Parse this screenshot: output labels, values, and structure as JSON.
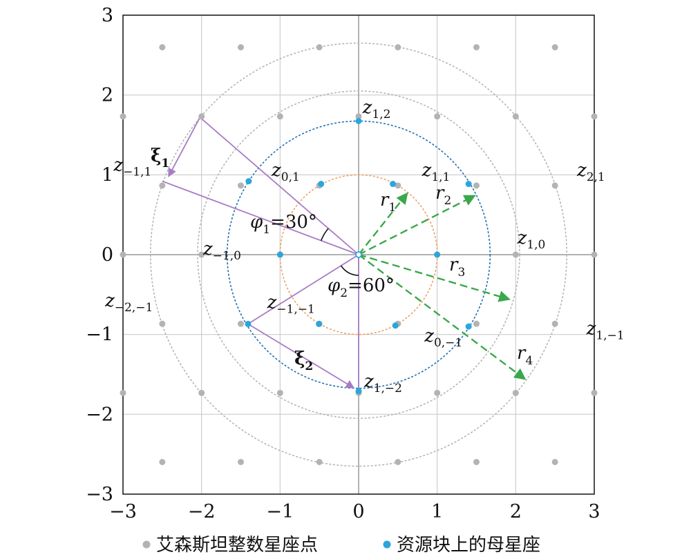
{
  "chart_data": {
    "type": "scatter",
    "title": "",
    "xlabel": "",
    "ylabel": "",
    "xlim": [
      -3,
      3
    ],
    "ylim": [
      -3,
      3
    ],
    "xticks": [
      "-3",
      "-2",
      "-1",
      "0",
      "1",
      "2",
      "3"
    ],
    "yticks": [
      "-3",
      "-2",
      "-1",
      "0",
      "1",
      "2",
      "3"
    ],
    "grid": true,
    "legend_position": "bottom",
    "colors": {
      "grid": "#cccccc",
      "axis": "#999999",
      "eisenstein": "#b3b3b3",
      "constellation": "#2aa6dd",
      "circle_inner": "#f0a060",
      "circle_mid": "#1f6fb4",
      "circle_outer": "#b5b5b5",
      "purple": "#a87cc4",
      "green": "#3aa84a"
    },
    "series": [
      {
        "name": "艾森斯坦整数星座点",
        "points": [
          [
            0,
            0
          ],
          [
            1,
            0
          ],
          [
            0.5,
            0.866
          ],
          [
            -0.5,
            0.866
          ],
          [
            -1,
            0
          ],
          [
            -0.5,
            -0.866
          ],
          [
            0.5,
            -0.866
          ],
          [
            1.5,
            0.866
          ],
          [
            0,
            1.732
          ],
          [
            -1.5,
            0.866
          ],
          [
            -1.5,
            -0.866
          ],
          [
            0,
            -1.732
          ],
          [
            1.5,
            -0.866
          ],
          [
            2,
            0
          ],
          [
            1,
            1.732
          ],
          [
            -1,
            1.732
          ],
          [
            -2,
            0
          ],
          [
            -1,
            -1.732
          ],
          [
            1,
            -1.732
          ],
          [
            2.5,
            0.866
          ],
          [
            2,
            1.732
          ],
          [
            0.5,
            2.598
          ],
          [
            -0.5,
            2.598
          ],
          [
            -2,
            1.732
          ],
          [
            -2.5,
            0.866
          ],
          [
            -2.5,
            -0.866
          ],
          [
            -2,
            -1.732
          ],
          [
            -0.5,
            -2.598
          ],
          [
            0.5,
            -2.598
          ],
          [
            2,
            -1.732
          ],
          [
            2.5,
            -0.866
          ],
          [
            3,
            0
          ],
          [
            -3,
            0
          ],
          [
            3,
            1.732
          ],
          [
            -3,
            1.732
          ],
          [
            3,
            -1.732
          ],
          [
            -3,
            -1.732
          ],
          [
            1.5,
            2.598
          ],
          [
            -1.5,
            2.598
          ],
          [
            2.5,
            2.598
          ],
          [
            -2.5,
            2.598
          ],
          [
            1.5,
            -2.598
          ],
          [
            -1.5,
            -2.598
          ],
          [
            2.5,
            -2.598
          ],
          [
            -2.5,
            -2.598
          ]
        ]
      },
      {
        "name": "资源块上的母星座",
        "points": [
          {
            "x": 0,
            "y": 1.674,
            "label": "z",
            "sub": "1,2",
            "lx": 0.05,
            "ly": 0.1
          },
          {
            "x": 0.436,
            "y": 0.886,
            "label": "z",
            "sub": "1,1",
            "lx": 0.37,
            "ly": 0.1
          },
          {
            "x": -0.478,
            "y": 0.886,
            "label": "z",
            "sub": "0,1",
            "lx": -0.63,
            "ly": 0.1
          },
          {
            "x": 1.4,
            "y": 0.886,
            "label": "z",
            "sub": "2,1",
            "lx": 1.38,
            "ly": 0.1
          },
          {
            "x": -1.4,
            "y": 0.92,
            "label": "z",
            "sub": "−1,1",
            "lx": -1.72,
            "ly": 0.13
          },
          {
            "x": 1.0,
            "y": 0.0,
            "label": "z",
            "sub": "1,0",
            "lx": 1.02,
            "ly": 0.14
          },
          {
            "x": -1.0,
            "y": 0.0,
            "label": "z",
            "sub": "−1,0",
            "lx": -0.98,
            "ly": 0.0
          },
          {
            "x": -0.505,
            "y": -0.868,
            "label": "z",
            "sub": "−1,−1",
            "lx": -0.66,
            "ly": 0.2
          },
          {
            "x": 0.468,
            "y": -0.888,
            "label": "z",
            "sub": "0,−1",
            "lx": 0.37,
            "ly": -0.2
          },
          {
            "x": 1.4,
            "y": -0.9,
            "label": "z",
            "sub": "1,−1",
            "lx": 1.5,
            "ly": -0.1
          },
          {
            "x": -1.408,
            "y": -0.868,
            "label": "z",
            "sub": "−2,−1",
            "lx": -1.82,
            "ly": 0.22
          },
          {
            "x": 0,
            "y": -1.71,
            "label": "z",
            "sub": "1,−2",
            "lx": 0.07,
            "ly": 0.05
          }
        ]
      }
    ],
    "circles": [
      {
        "r": 1.0,
        "color": "#f0a060"
      },
      {
        "r": 1.674,
        "color": "#1f6fb4"
      },
      {
        "r": 2.05,
        "color": "#b5b5b5"
      },
      {
        "r": 2.65,
        "color": "#b5b5b5"
      }
    ],
    "annotations": {
      "xi1": {
        "text": "ξ",
        "sub": "1"
      },
      "xi2": {
        "text": "ξ",
        "sub": "2"
      },
      "phi1": {
        "text": "φ",
        "sub": "1",
        "value": "=30°"
      },
      "phi2": {
        "text": "φ",
        "sub": "2",
        "value": "=60°"
      },
      "r_labels": [
        {
          "text": "r",
          "sub": "1"
        },
        {
          "text": "r",
          "sub": "2"
        },
        {
          "text": "r",
          "sub": "3"
        },
        {
          "text": "r",
          "sub": "4"
        }
      ]
    },
    "vectors": {
      "purple_lines": [
        [
          [
            0,
            0
          ],
          [
            -2.5,
            0.92
          ]
        ],
        [
          [
            0,
            0
          ],
          [
            -2.02,
            1.72
          ]
        ],
        [
          [
            0,
            0
          ],
          [
            -1.408,
            -0.868
          ]
        ],
        [
          [
            0,
            0
          ],
          [
            0,
            -1.71
          ]
        ]
      ],
      "purple_arrows": [
        [
          [
            -2.02,
            1.72
          ],
          [
            -2.42,
            0.98
          ]
        ],
        [
          [
            -1.408,
            -0.868
          ],
          [
            -0.06,
            -1.67
          ]
        ]
      ],
      "green_arrows": [
        [
          [
            0,
            0
          ],
          [
            0.62,
            0.77
          ]
        ],
        [
          [
            0,
            0
          ],
          [
            1.48,
            0.74
          ]
        ],
        [
          [
            0,
            0
          ],
          [
            1.92,
            -0.56
          ]
        ],
        [
          [
            0,
            0
          ],
          [
            2.12,
            -1.56
          ]
        ]
      ]
    }
  }
}
